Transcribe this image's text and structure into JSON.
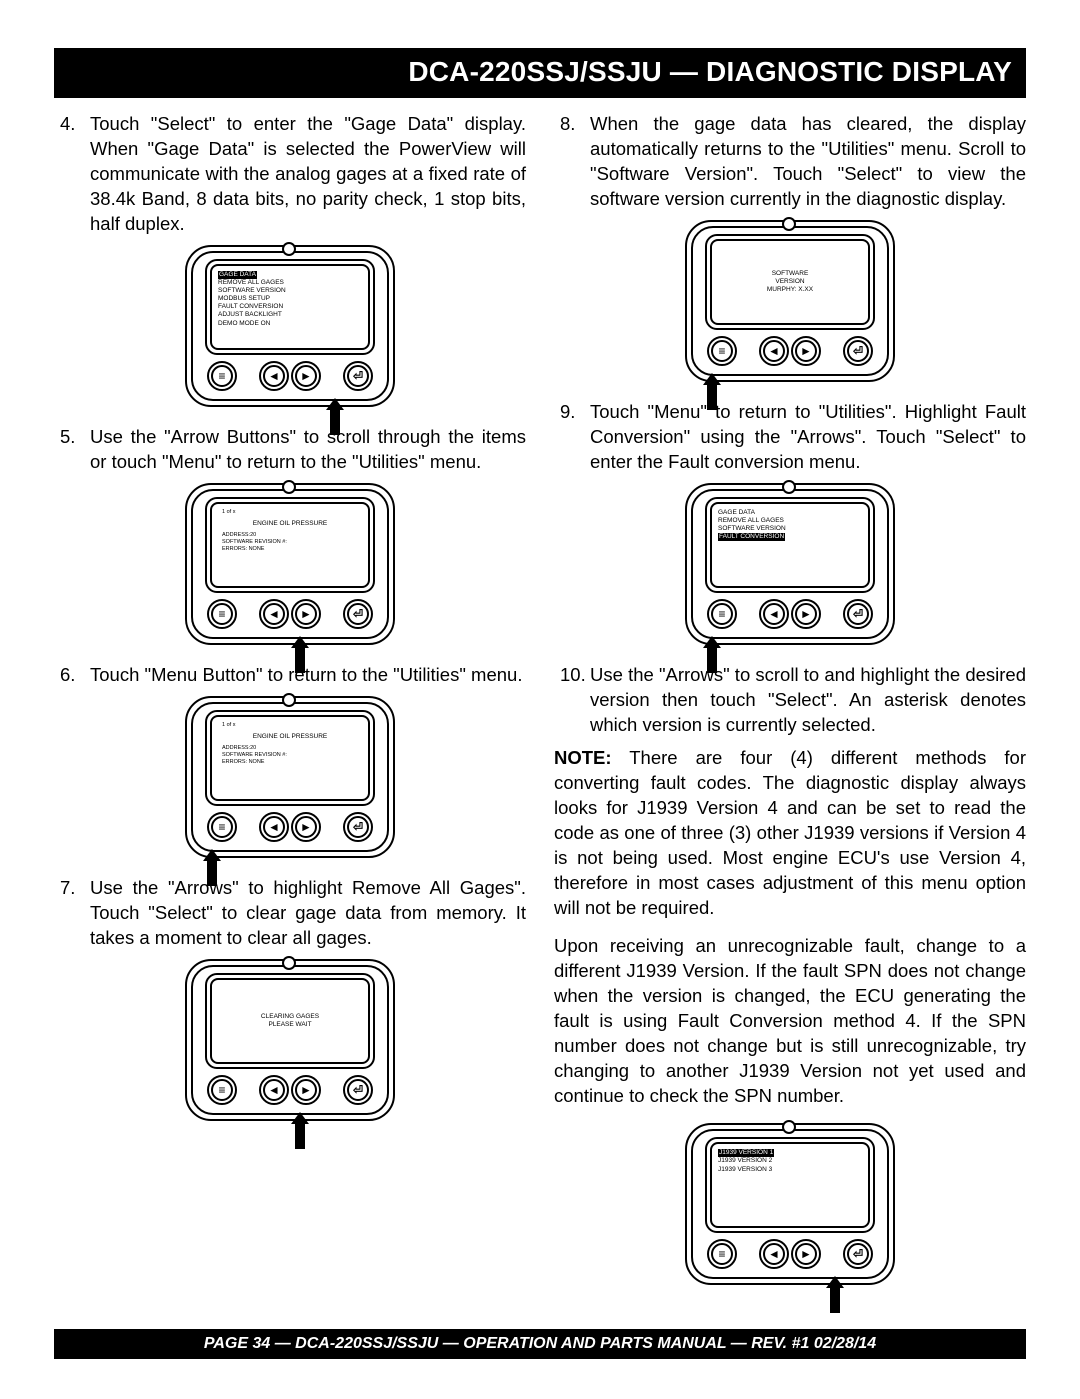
{
  "title": "DCA-220SSJ/SSJU — DIAGNOSTIC DISPLAY",
  "footer": "PAGE 34 — DCA-220SSJ/SSJU —  OPERATION AND PARTS  MANUAL — REV. #1  02/28/14",
  "left": {
    "s4": {
      "num": "4.",
      "txt": "Touch \"Select\" to enter the \"Gage Data\" display. When \"Gage Data\" is selected the PowerView will communicate with the analog gages at a fixed rate of 38.4k Band, 8 data bits, no parity check, 1 stop bits, half duplex."
    },
    "s5": {
      "num": "5.",
      "txt": "Use the \"Arrow Buttons\" to scroll through the items or touch \"Menu\" to return to the \"Utilities\" menu."
    },
    "s6": {
      "num": "6.",
      "txt": "Touch \"Menu Button\" to return to the \"Utilities\" menu."
    },
    "s7": {
      "num": "7.",
      "txt": "Use the \"Arrows\" to highlight Remove All Gages\". Touch \"Select\" to clear gage data from memory. It takes a moment to clear all gages."
    }
  },
  "right": {
    "s8": {
      "num": "8.",
      "txt": "When the gage data has cleared, the display automatically returns to the \"Utilities\" menu. Scroll to \"Software Version\". Touch \"Select\" to view the software version currently in the diagnostic display."
    },
    "s9": {
      "num": "9.",
      "txt": "Touch \"Menu\" to return to \"Utilities\". Highlight Fault Conversion\" using the \"Arrows\". Touch \"Select\" to enter the Fault conversion menu."
    },
    "s10": {
      "num": "10.",
      "txt": "Use the \"Arrows\" to scroll to and highlight the desired version then touch \"Select\". An asterisk denotes which version is currently selected."
    },
    "note_label": "NOTE:",
    "note": " There are four (4) different methods for converting fault codes. The diagnostic display always looks for J1939 Version 4 and can be set to read the code as one of three (3) other J1939 versions if Version 4 is not being used. Most engine ECU's use Version 4, therefore in most cases adjustment of this menu option will not be required.",
    "para2": "Upon receiving an unrecognizable fault, change to a different J1939 Version. If the fault SPN does not change when the version is changed, the ECU generating the fault is using Fault Conversion method 4. If the SPN number does not change but is still unrecognizable, try changing to another J1939 Version not yet used and continue to check the SPN number."
  },
  "screens": {
    "d4": {
      "hl": "GAGE DATA",
      "lines": [
        "REMOVE ALL GAGES",
        "SOFTWARE VERSION",
        "MODBUS SETUP",
        "FAULT CONVERSION",
        "ADJUST BACKLIGHT",
        "DEMO MODE ON"
      ]
    },
    "d5": {
      "top": "1 of x",
      "title": "ENGINE OIL PRESSURE",
      "lines": [
        "ADDRESS:20",
        "SOFTWARE REVISION #:",
        "ERRORS:    NONE"
      ]
    },
    "d6": {
      "top": "1 of x",
      "title": "ENGINE OIL PRESSURE",
      "lines": [
        "ADDRESS:20",
        "SOFTWARE REVISION #:",
        "ERRORS:    NONE"
      ]
    },
    "d7": {
      "l1": "CLEARING GAGES",
      "l2": "PLEASE WAIT"
    },
    "d8": {
      "l1": "SOFTWARE",
      "l2": "VERSION",
      "l3": "MURPHY: X.XX"
    },
    "d9": {
      "lines": [
        "GAGE DATA",
        "REMOVE ALL GAGES",
        "SOFTWARE VERSION"
      ],
      "hl": "FAULT CONVERSION"
    },
    "d10": {
      "hl": "J1939 VERSION 1",
      "lines": [
        "J1939 VERSION 2",
        "J1939 VERSION 3"
      ]
    }
  },
  "buttons": {
    "menu": "≡",
    "left": "◄",
    "right": "►",
    "enter": "⏎"
  }
}
